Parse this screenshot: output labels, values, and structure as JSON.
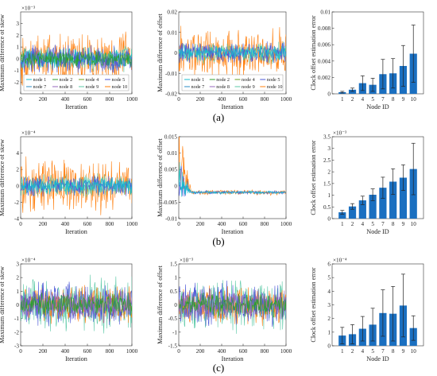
{
  "row_labels": [
    "(a)",
    "(b)",
    "(c)"
  ],
  "colors": {
    "node1": "#17becf",
    "node2": "#2ca02c",
    "node4": "#6a9f1f",
    "node5": "#4b57d6",
    "node7": "#2b8cc4",
    "node8": "#9467bd",
    "node9": "#5cc9a7",
    "node10": "#ff7f0e",
    "bar": "#1a6fc0",
    "errorbar": "#222222"
  },
  "chart_data": [
    {
      "type": "line",
      "panel": "a-left",
      "xlabel": "Iteration",
      "ylabel": "Maximum difference of skew",
      "exponent": "×10⁻³",
      "xlim": [
        0,
        1000
      ],
      "ylim": [
        -3,
        4
      ],
      "xticks": [
        0,
        200,
        400,
        600,
        800,
        1000
      ],
      "yticks": [
        -2,
        -1,
        0,
        1,
        2,
        3
      ],
      "legend": [
        "node 1",
        "node 2",
        "node 4",
        "node 5",
        "node 7",
        "node 8",
        "node 9",
        "node 10"
      ],
      "legend_position": "bottom",
      "series": [
        {
          "name": "node 10",
          "color_key": "node10",
          "amplitude": 2.7,
          "noise": 1.0
        },
        {
          "name": "node 9",
          "color_key": "node9",
          "amplitude": 1.2,
          "noise": 1.0
        },
        {
          "name": "node 1",
          "color_key": "node1",
          "amplitude": 1.0,
          "noise": 1.0
        },
        {
          "name": "node 5",
          "color_key": "node5",
          "amplitude": 1.4,
          "noise": 1.0
        },
        {
          "name": "node 2",
          "color_key": "node2",
          "amplitude": 0.8,
          "noise": 1.0
        }
      ]
    },
    {
      "type": "line",
      "panel": "a-mid",
      "xlabel": "Iteration",
      "ylabel": "Maximum difference of offset",
      "xlim": [
        0,
        1000
      ],
      "ylim": [
        -0.02,
        0.02
      ],
      "xticks": [
        0,
        200,
        400,
        600,
        800,
        1000
      ],
      "yticks": [
        -0.02,
        -0.01,
        0,
        0.01,
        0.02
      ],
      "legend": [
        "node 1",
        "node 2",
        "node 4",
        "node 5",
        "node 7",
        "node 8",
        "node 9",
        "node 10"
      ],
      "legend_position": "bottom",
      "series": [
        {
          "name": "node 10",
          "color_key": "node10",
          "amplitude": 0.014,
          "noise": 1.0
        },
        {
          "name": "node 9",
          "color_key": "node9",
          "amplitude": 0.006,
          "noise": 1.0
        },
        {
          "name": "node 5",
          "color_key": "node5",
          "amplitude": 0.006,
          "noise": 1.0
        },
        {
          "name": "node 1",
          "color_key": "node1",
          "amplitude": 0.004,
          "noise": 1.0
        }
      ]
    },
    {
      "type": "bar",
      "panel": "a-right",
      "xlabel": "Node ID",
      "ylabel": "Clock offset estimation error",
      "categories": [
        "1",
        "2",
        "4",
        "5",
        "7",
        "8",
        "9",
        "10"
      ],
      "values": [
        0.0002,
        0.0005,
        0.0013,
        0.0011,
        0.0024,
        0.0025,
        0.0034,
        0.0049
      ],
      "errors": [
        0.0001,
        0.0002,
        0.0009,
        0.0008,
        0.0018,
        0.0018,
        0.0025,
        0.0035
      ],
      "ylim": [
        0,
        0.01
      ],
      "yticks": [
        0,
        0.002,
        0.004,
        0.006,
        0.008,
        0.01
      ],
      "ytick_labels": [
        "0",
        "0.002",
        "0.004",
        "0.006",
        "0.008",
        "0.01"
      ]
    },
    {
      "type": "line",
      "panel": "b-left",
      "xlabel": "Iteration",
      "ylabel": "Maximum difference of skew",
      "exponent": "×10⁻⁴",
      "xlim": [
        0,
        1000
      ],
      "ylim": [
        -4,
        6
      ],
      "xticks": [
        0,
        200,
        400,
        600,
        800,
        1000
      ],
      "yticks": [
        -4,
        -2,
        0,
        2,
        4
      ],
      "series": [
        {
          "name": "node 10",
          "color_key": "node10",
          "amplitude": 3.8,
          "noise": 1.0
        },
        {
          "name": "node 9",
          "color_key": "node9",
          "amplitude": 1.6,
          "noise": 1.0
        },
        {
          "name": "node 5",
          "color_key": "node5",
          "amplitude": 1.5,
          "noise": 1.0
        },
        {
          "name": "node 1",
          "color_key": "node1",
          "amplitude": 1.2,
          "noise": 1.0
        }
      ]
    },
    {
      "type": "line",
      "panel": "b-mid",
      "xlabel": "Iteration",
      "ylabel": "Maximum difference of offset",
      "xlim": [
        0,
        1000
      ],
      "ylim": [
        -0.01,
        0.015
      ],
      "xticks": [
        0,
        200,
        400,
        600,
        800,
        1000
      ],
      "yticks": [
        -0.01,
        -0.005,
        0,
        0.005,
        0.01,
        0.015
      ],
      "ytick_labels": [
        "-0.01",
        "-0.005",
        "0",
        "0.005",
        "0.01",
        "0.015"
      ],
      "series": [
        {
          "name": "node 10",
          "color_key": "node10",
          "offset": -0.002,
          "amplitude": 0.0009,
          "noise": 1.0
        },
        {
          "name": "node 5",
          "color_key": "node5",
          "offset": -0.002,
          "amplitude": 0.0006,
          "noise": 1.0
        },
        {
          "name": "node 1",
          "color_key": "node1",
          "offset": -0.002,
          "amplitude": 0.0005,
          "noise": 1.0
        }
      ]
    },
    {
      "type": "bar",
      "panel": "b-right",
      "xlabel": "Node ID",
      "ylabel": "Clock offset estimation error",
      "exponent": "×10⁻³",
      "categories": [
        "1",
        "2",
        "4",
        "5",
        "7",
        "8",
        "9",
        "10"
      ],
      "values": [
        0.27,
        0.52,
        0.78,
        1.02,
        1.32,
        1.58,
        1.75,
        2.12
      ],
      "errors": [
        0.08,
        0.12,
        0.18,
        0.25,
        0.45,
        0.55,
        0.55,
        1.1
      ],
      "ylim": [
        0,
        3.5
      ],
      "yticks": [
        0,
        0.5,
        1,
        1.5,
        2,
        2.5,
        3,
        3.5
      ],
      "ytick_labels": [
        "0",
        "0.5",
        "1",
        "1.5",
        "2",
        "2.5",
        "3",
        "3.5"
      ]
    },
    {
      "type": "line",
      "panel": "c-left",
      "xlabel": "Iteration",
      "ylabel": "Maximum difference of skew",
      "exponent": "×10⁻⁴",
      "xlim": [
        0,
        1000
      ],
      "ylim": [
        -3,
        3
      ],
      "xticks": [
        0,
        200,
        400,
        600,
        800,
        1000
      ],
      "yticks": [
        -3,
        -2,
        -1,
        0,
        1,
        2,
        3
      ],
      "series": [
        {
          "name": "node 9",
          "color_key": "node9",
          "amplitude": 2.3,
          "noise": 1.0
        },
        {
          "name": "node 10",
          "color_key": "node10",
          "amplitude": 1.6,
          "noise": 1.0
        },
        {
          "name": "node 5",
          "color_key": "node5",
          "amplitude": 1.8,
          "noise": 1.0
        },
        {
          "name": "node 8",
          "color_key": "node8",
          "amplitude": 1.2,
          "noise": 1.0
        },
        {
          "name": "node 2",
          "color_key": "node2",
          "amplitude": 1.0,
          "noise": 1.0
        }
      ]
    },
    {
      "type": "line",
      "panel": "c-mid",
      "xlabel": "Iteration",
      "ylabel": "Maximum difference of offset",
      "exponent": "×10⁻³",
      "xlim": [
        0,
        1000
      ],
      "ylim": [
        -1.5,
        1.5
      ],
      "xticks": [
        0,
        200,
        400,
        600,
        800,
        1000
      ],
      "yticks": [
        -1.5,
        -1,
        -0.5,
        0,
        0.5,
        1,
        1.5
      ],
      "ytick_labels": [
        "-1.5",
        "-1",
        "-0.5",
        "0",
        "0.5",
        "1",
        "1.5"
      ],
      "series": [
        {
          "name": "node 9",
          "color_key": "node9",
          "amplitude": 1.1,
          "noise": 1.0
        },
        {
          "name": "node 10",
          "color_key": "node10",
          "amplitude": 0.8,
          "noise": 1.0
        },
        {
          "name": "node 5",
          "color_key": "node5",
          "amplitude": 0.9,
          "noise": 1.0
        },
        {
          "name": "node 8",
          "color_key": "node8",
          "amplitude": 0.6,
          "noise": 1.0
        },
        {
          "name": "node 2",
          "color_key": "node2",
          "amplitude": 0.5,
          "noise": 1.0
        }
      ]
    },
    {
      "type": "bar",
      "panel": "c-right",
      "xlabel": "Node ID",
      "ylabel": "Clock offset estimation error",
      "exponent": "×10⁻⁴",
      "categories": [
        "1",
        "2",
        "4",
        "5",
        "7",
        "8",
        "9",
        "10"
      ],
      "values": [
        0.75,
        0.85,
        1.25,
        1.55,
        2.4,
        2.35,
        2.95,
        1.3
      ],
      "errors": [
        0.6,
        0.7,
        0.9,
        1.2,
        1.7,
        2.0,
        2.3,
        0.9
      ],
      "ylim": [
        0,
        6
      ],
      "yticks": [
        0,
        1,
        2,
        3,
        4,
        5,
        6
      ],
      "ytick_labels": [
        "0",
        "1",
        "2",
        "3",
        "4",
        "5",
        "6"
      ]
    }
  ]
}
